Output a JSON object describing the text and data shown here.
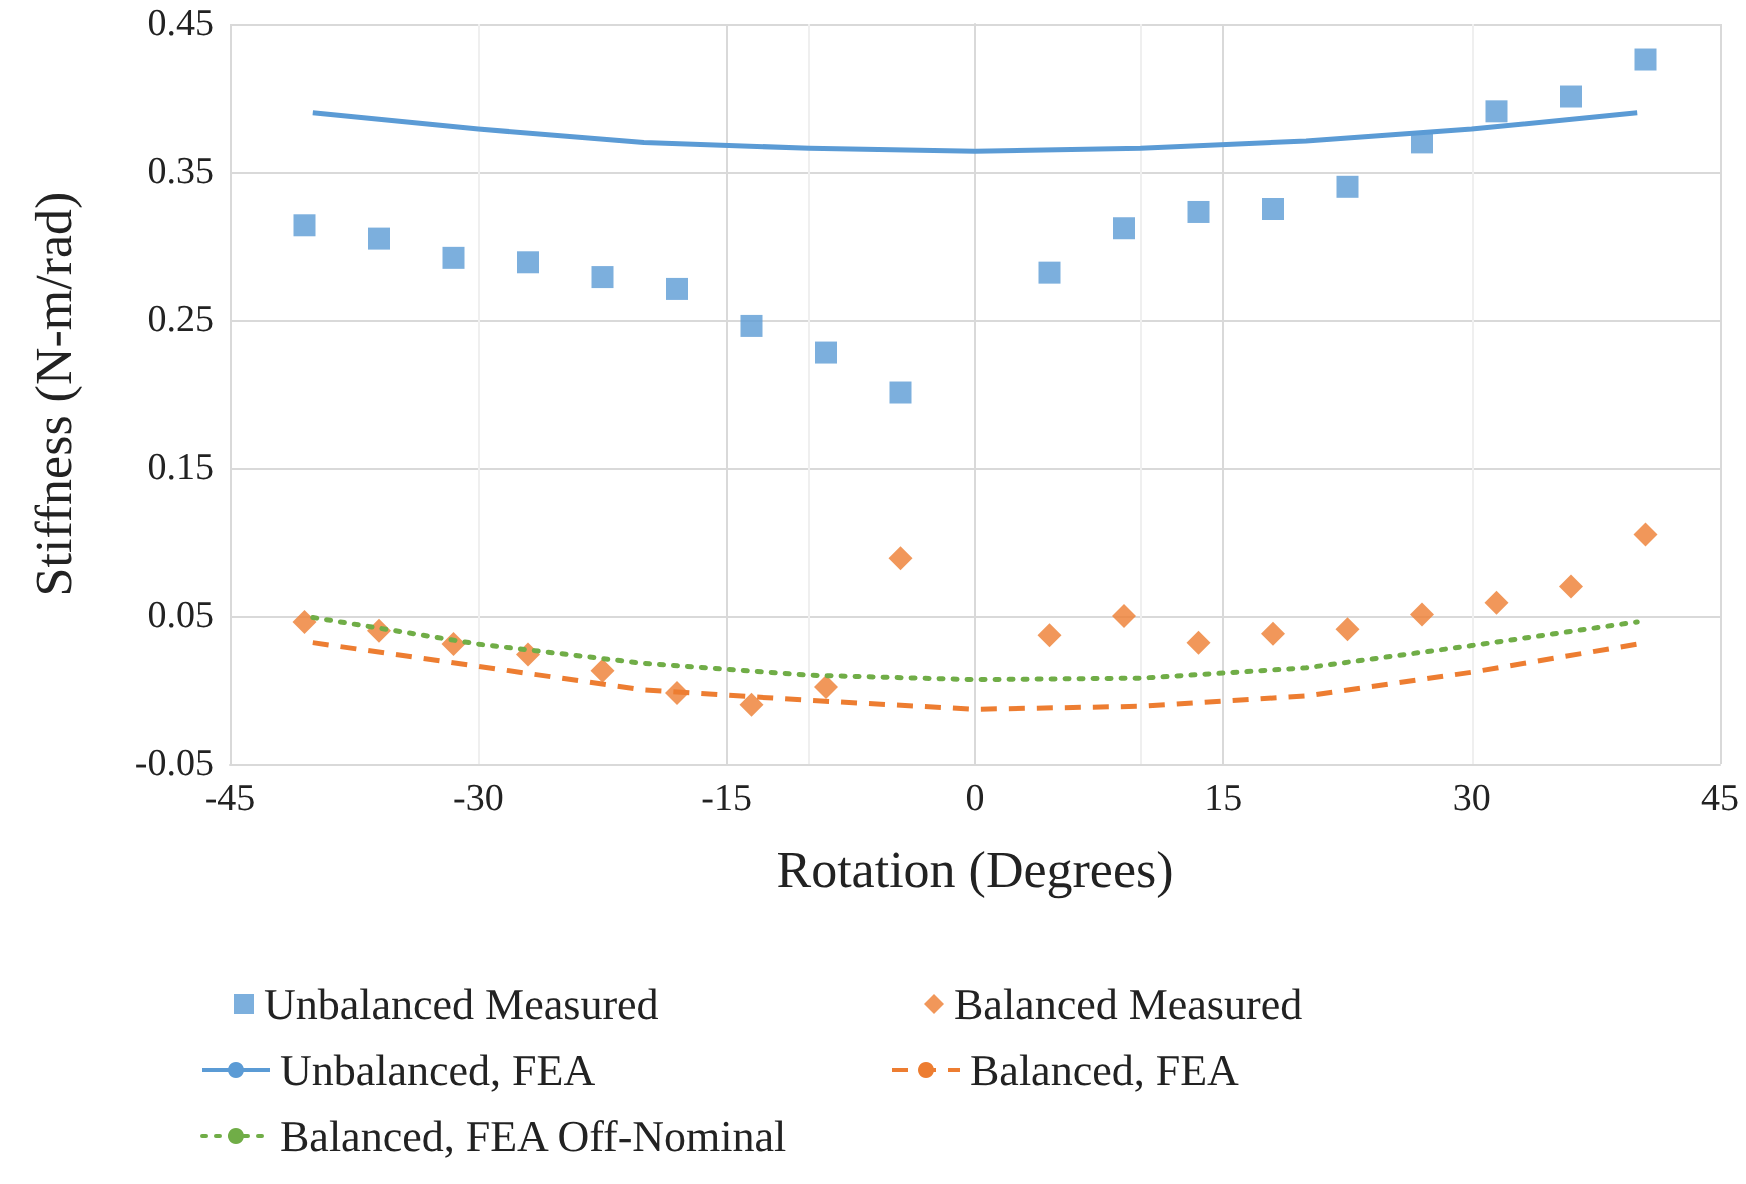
{
  "chart_data": {
    "type": "scatter",
    "xlabel": "Rotation (Degrees)",
    "ylabel": "Stiffness (N-m/rad)",
    "xlim": [
      -45,
      45
    ],
    "xticks": [
      -45,
      -30,
      -15,
      0,
      15,
      30,
      45
    ],
    "ylim": [
      -0.05,
      0.45
    ],
    "yticks": [
      -0.05,
      0.05,
      0.15,
      0.25,
      0.35,
      0.45
    ],
    "grid": true,
    "legend": "bottom",
    "series": [
      {
        "name": "Unbalanced Measured",
        "marker": "square",
        "color": "#5b9bd5",
        "x": [
          -40.5,
          -36,
          -31.5,
          -27,
          -22.5,
          -18,
          -13.5,
          -9,
          -4.5,
          4.5,
          9,
          13.5,
          18,
          22.5,
          27,
          31.5,
          36,
          40.5
        ],
        "values": [
          0.314,
          0.305,
          0.292,
          0.289,
          0.279,
          0.271,
          0.246,
          0.228,
          0.201,
          0.282,
          0.312,
          0.323,
          0.325,
          0.34,
          0.37,
          0.391,
          0.401,
          0.426
        ]
      },
      {
        "name": "Balanced Measured",
        "marker": "diamond",
        "color": "#ed7d31",
        "x": [
          -40.5,
          -36,
          -31.5,
          -27,
          -22.5,
          -18,
          -13.5,
          -9,
          -4.5,
          4.5,
          9,
          13.5,
          18,
          22.5,
          27,
          31.5,
          36,
          40.5
        ],
        "values": [
          0.046,
          0.04,
          0.031,
          0.024,
          0.013,
          -0.002,
          -0.01,
          0.002,
          0.089,
          0.037,
          0.05,
          0.032,
          0.038,
          0.041,
          0.051,
          0.059,
          0.07,
          0.105
        ]
      },
      {
        "name": "Unbalanced, FEA",
        "type": "line",
        "marker": "none",
        "line_style": "solid",
        "color": "#5b9bd5",
        "x": [
          -40,
          -30,
          -20,
          -10,
          0,
          10,
          20,
          30,
          40
        ],
        "values": [
          0.39,
          0.379,
          0.37,
          0.366,
          0.364,
          0.366,
          0.371,
          0.379,
          0.39
        ]
      },
      {
        "name": "Balanced, FEA",
        "type": "line",
        "marker": "none",
        "line_style": "dashed",
        "color": "#ed7d31",
        "x": [
          -40,
          -30,
          -20,
          -10,
          0,
          10,
          20,
          30,
          40
        ],
        "values": [
          0.032,
          0.016,
          0.0,
          -0.007,
          -0.013,
          -0.011,
          -0.004,
          0.012,
          0.031
        ]
      },
      {
        "name": "Balanced, FEA Off-Nominal",
        "type": "line",
        "marker": "none",
        "line_style": "dotted",
        "color": "#70ad47",
        "x": [
          -40,
          -30,
          -20,
          -10,
          0,
          10,
          20,
          30,
          40
        ],
        "values": [
          0.049,
          0.031,
          0.018,
          0.01,
          0.007,
          0.008,
          0.015,
          0.03,
          0.046
        ]
      }
    ]
  }
}
